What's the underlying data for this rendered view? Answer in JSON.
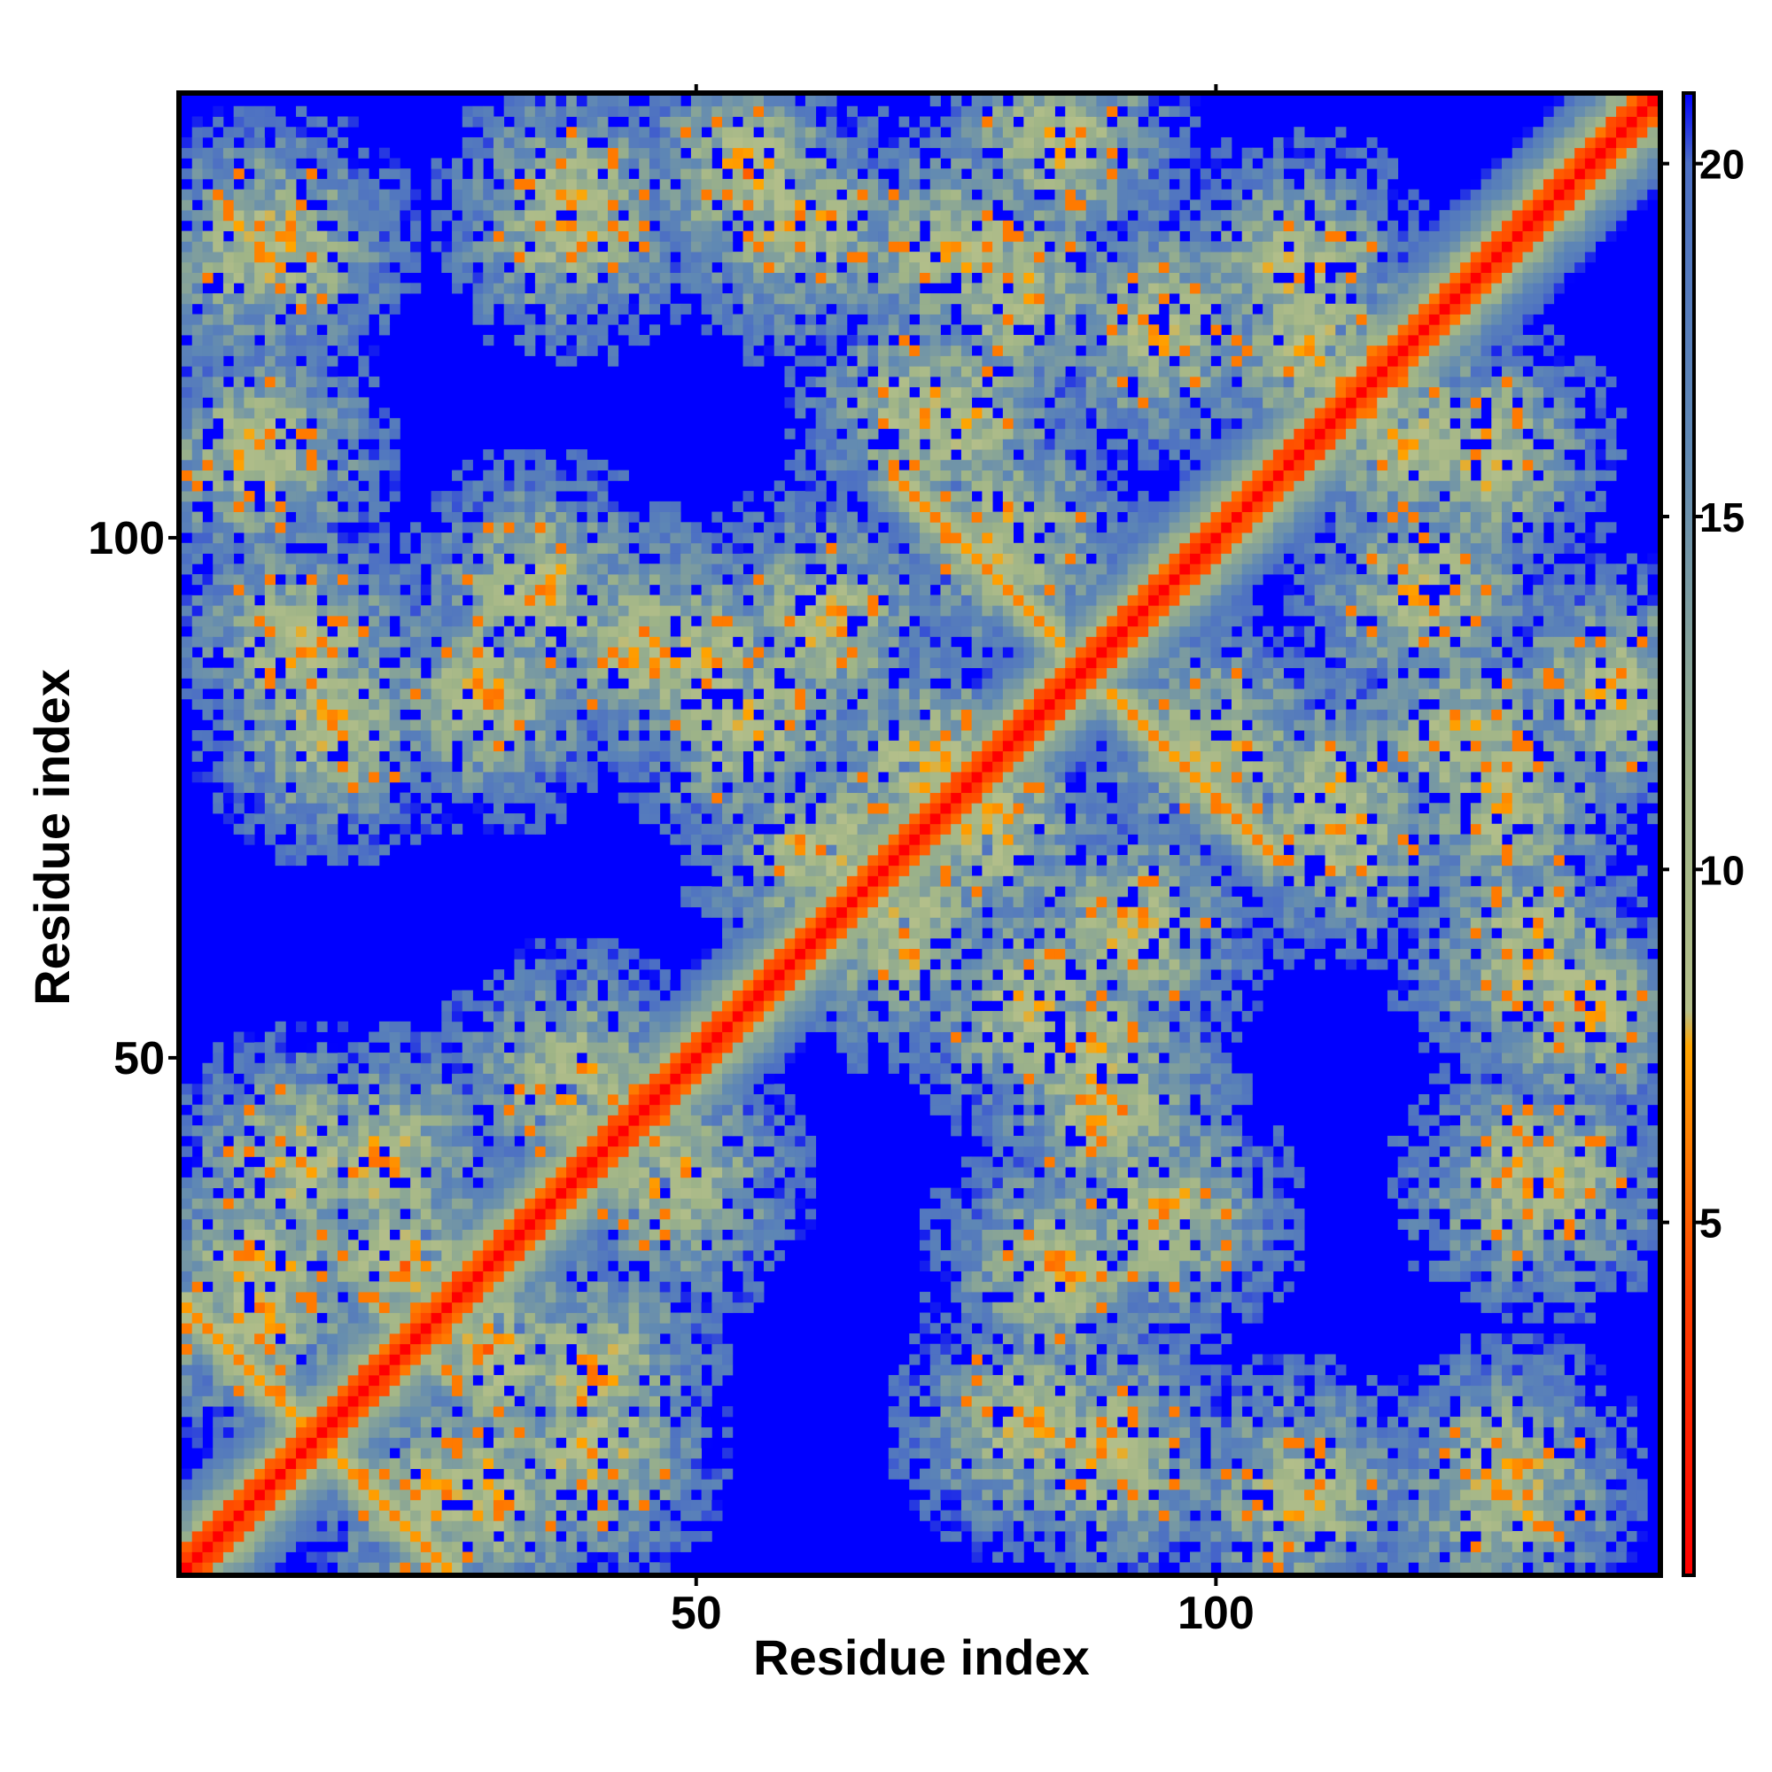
{
  "chart_data": {
    "type": "heatmap",
    "title": "",
    "xlabel": "Residue index",
    "ylabel": "Residue index",
    "xlim": [
      1,
      142
    ],
    "ylim": [
      1,
      142
    ],
    "x_ticks": [
      50,
      100
    ],
    "y_ticks": [
      50,
      100
    ],
    "grid": false,
    "colorbar": {
      "ticks": [
        5,
        10,
        15,
        20
      ],
      "range": [
        0,
        21
      ],
      "stops": [
        {
          "value": 0,
          "color": "#ff0000"
        },
        {
          "value": 4,
          "color": "#ff4000"
        },
        {
          "value": 7.5,
          "color": "#ffa500"
        },
        {
          "value": 8,
          "color": "#b4bf8a"
        },
        {
          "value": 11,
          "color": "#9fb487"
        },
        {
          "value": 16,
          "color": "#5f88b4"
        },
        {
          "value": 20,
          "color": "#4c6fc4"
        },
        {
          "value": 21,
          "color": "#0000ff"
        }
      ],
      "saturation_color": "#0000ff"
    },
    "structure": {
      "diagonal_band_width": 3,
      "antiparallel_pairs": [
        {
          "i_range": [
            72,
            82
          ],
          "j_range": [
            92,
            103
          ]
        },
        {
          "i_range": [
            3,
            12
          ],
          "j_range": [
            16,
            24
          ]
        }
      ],
      "contact_clusters": [
        {
          "x": 8,
          "y": 128,
          "strength": 0.5
        },
        {
          "x": 38,
          "y": 132,
          "strength": 0.6
        },
        {
          "x": 60,
          "y": 130,
          "strength": 0.6
        },
        {
          "x": 80,
          "y": 124,
          "strength": 0.55
        },
        {
          "x": 108,
          "y": 126,
          "strength": 0.5
        },
        {
          "x": 118,
          "y": 110,
          "strength": 0.55
        },
        {
          "x": 95,
          "y": 120,
          "strength": 0.45
        },
        {
          "x": 72,
          "y": 112,
          "strength": 0.5
        },
        {
          "x": 12,
          "y": 90,
          "strength": 0.55
        },
        {
          "x": 30,
          "y": 85,
          "strength": 0.45
        },
        {
          "x": 50,
          "y": 88,
          "strength": 0.55
        },
        {
          "x": 62,
          "y": 92,
          "strength": 0.5
        },
        {
          "x": 8,
          "y": 30,
          "strength": 0.55
        },
        {
          "x": 20,
          "y": 40,
          "strength": 0.55
        },
        {
          "x": 30,
          "y": 22,
          "strength": 0.55
        },
        {
          "x": 40,
          "y": 12,
          "strength": 0.5
        },
        {
          "x": 25,
          "y": 8,
          "strength": 0.5
        },
        {
          "x": 48,
          "y": 38,
          "strength": 0.45
        },
        {
          "x": 82,
          "y": 55,
          "strength": 0.5
        },
        {
          "x": 90,
          "y": 45,
          "strength": 0.5
        },
        {
          "x": 82,
          "y": 15,
          "strength": 0.55
        },
        {
          "x": 95,
          "y": 35,
          "strength": 0.4
        },
        {
          "x": 112,
          "y": 75,
          "strength": 0.45
        },
        {
          "x": 128,
          "y": 75,
          "strength": 0.5
        },
        {
          "x": 135,
          "y": 55,
          "strength": 0.55
        },
        {
          "x": 130,
          "y": 38,
          "strength": 0.5
        },
        {
          "x": 128,
          "y": 10,
          "strength": 0.5
        },
        {
          "x": 108,
          "y": 8,
          "strength": 0.4
        },
        {
          "x": 138,
          "y": 85,
          "strength": 0.4
        },
        {
          "x": 100,
          "y": 80,
          "strength": 0.45
        },
        {
          "x": 78,
          "y": 72,
          "strength": 0.45
        },
        {
          "x": 70,
          "y": 62,
          "strength": 0.4
        }
      ]
    }
  }
}
